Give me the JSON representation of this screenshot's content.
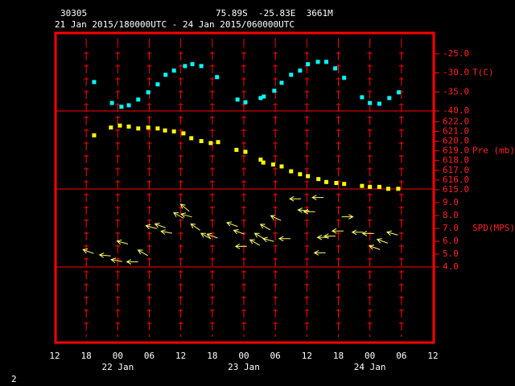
{
  "chart_data": {
    "type": "meteogram",
    "station": "30305",
    "location": "75.89S  -25.83E  3661M",
    "subtitle": "21 Jan 2015/180000UTC - 24 Jan 2015/060000UTC",
    "corner_label": "2",
    "frame_color": "#ff0000",
    "xlim": [
      0,
      72
    ],
    "xticks": [
      {
        "value": 0,
        "label": "12"
      },
      {
        "value": 6,
        "label": "18"
      },
      {
        "value": 12,
        "label": "00"
      },
      {
        "value": 18,
        "label": "06"
      },
      {
        "value": 24,
        "label": "12"
      },
      {
        "value": 30,
        "label": "18"
      },
      {
        "value": 36,
        "label": "00"
      },
      {
        "value": 42,
        "label": "06"
      },
      {
        "value": 48,
        "label": "12"
      },
      {
        "value": 54,
        "label": "18"
      },
      {
        "value": 60,
        "label": "00"
      },
      {
        "value": 66,
        "label": "06"
      },
      {
        "value": 72,
        "label": "12"
      }
    ],
    "day_labels": [
      {
        "value": 12,
        "label": "22 Jan"
      },
      {
        "value": 36,
        "label": "23 Jan"
      },
      {
        "value": 60,
        "label": "24 Jan"
      }
    ],
    "panels": [
      {
        "type": "scatter",
        "axis_label": "T(C)",
        "color": "#00ffff",
        "ylim": [
          -40,
          -19.3
        ],
        "yticks": [
          {
            "value": -25,
            "label": "-25.0"
          },
          {
            "value": -30,
            "label": "-30.0"
          },
          {
            "value": -35,
            "label": "-35.0"
          },
          {
            "value": -40,
            "label": "-40.0"
          }
        ],
        "x": [
          7.5,
          10.9,
          12.7,
          14.1,
          15.9,
          17.8,
          19.6,
          21.1,
          22.7,
          24.8,
          26.2,
          27.9,
          30.9,
          34.8,
          36.3,
          39.2,
          39.8,
          41.8,
          43.2,
          45.0,
          46.7,
          48.2,
          50.1,
          51.7,
          53.4,
          55.1,
          58.5,
          60.0,
          61.8,
          63.7,
          65.5
        ],
        "values": [
          -32.4,
          -37.9,
          -38.9,
          -38.5,
          -37.0,
          -35.1,
          -33.0,
          -30.5,
          -29.4,
          -28.2,
          -27.7,
          -28.2,
          -31.1,
          -37.0,
          -37.7,
          -36.6,
          -36.2,
          -34.7,
          -32.6,
          -30.5,
          -29.4,
          -27.7,
          -27.1,
          -27.1,
          -28.8,
          -31.3,
          -36.4,
          -37.9,
          -38.1,
          -36.6,
          -35.1
        ]
      },
      {
        "type": "scatter",
        "axis_label": "Pre (mb)",
        "color": "#ffff00",
        "ylim": [
          615,
          623.1
        ],
        "yticks": [
          {
            "value": 622,
            "label": "622.0"
          },
          {
            "value": 621,
            "label": "621.0"
          },
          {
            "value": 620,
            "label": "620.0"
          },
          {
            "value": 619,
            "label": "619.0"
          },
          {
            "value": 618,
            "label": "618.0"
          },
          {
            "value": 617,
            "label": "617.0"
          },
          {
            "value": 616,
            "label": "616.0"
          },
          {
            "value": 615,
            "label": "615.0"
          }
        ],
        "x": [
          7.5,
          10.7,
          12.4,
          14.1,
          15.9,
          17.8,
          19.6,
          21.0,
          22.7,
          24.5,
          26.0,
          27.9,
          29.7,
          31.1,
          34.6,
          36.3,
          39.2,
          39.7,
          41.6,
          43.2,
          45.0,
          46.7,
          48.2,
          50.2,
          51.7,
          53.6,
          55.1,
          58.5,
          60.0,
          61.8,
          63.5,
          65.4
        ],
        "values": [
          620.6,
          621.4,
          621.6,
          621.5,
          621.3,
          621.4,
          621.3,
          621.1,
          621.0,
          620.8,
          620.3,
          620.0,
          619.8,
          619.9,
          619.1,
          618.9,
          618.1,
          617.8,
          617.6,
          617.4,
          616.9,
          616.6,
          616.4,
          616.1,
          615.8,
          615.7,
          615.6,
          615.4,
          615.3,
          615.3,
          615.1,
          615.1
        ]
      },
      {
        "type": "vector",
        "axis_label": "SPD(MPS)",
        "color": "#ffff66",
        "ylim": [
          4,
          10
        ],
        "yticks": [
          {
            "value": 9,
            "label": "9.0"
          },
          {
            "value": 8,
            "label": "8.0"
          },
          {
            "value": 7,
            "label": "7.0"
          },
          {
            "value": 6,
            "label": "6.0"
          },
          {
            "value": 5,
            "label": "5.0"
          },
          {
            "value": 4,
            "label": "4.0"
          }
        ],
        "x": [
          6.4,
          9.6,
          11.8,
          12.9,
          14.8,
          16.8,
          18.4,
          20.1,
          21.3,
          23.6,
          24.8,
          25.1,
          26.8,
          28.8,
          30.0,
          33.8,
          35.1,
          35.5,
          38.1,
          39.0,
          40.1,
          40.7,
          42.1,
          43.8,
          45.8,
          47.4,
          48.5,
          50.1,
          50.5,
          51.1,
          52.4,
          53.9,
          55.7,
          57.7,
          59.7,
          60.9,
          62.4,
          64.3
        ],
        "values": [
          5.2,
          4.9,
          4.5,
          5.9,
          4.4,
          5.1,
          7.1,
          7.2,
          6.7,
          8.0,
          8.6,
          8.0,
          7.1,
          6.4,
          6.4,
          7.3,
          6.7,
          5.6,
          5.9,
          6.4,
          7.1,
          6.1,
          7.8,
          6.2,
          9.3,
          8.4,
          8.3,
          9.4,
          5.1,
          6.3,
          6.4,
          6.8,
          7.9,
          6.7,
          6.6,
          5.5,
          6.0,
          6.6
        ],
        "direction": [
          160,
          175,
          170,
          165,
          180,
          150,
          165,
          160,
          170,
          150,
          140,
          165,
          145,
          150,
          160,
          160,
          160,
          180,
          150,
          150,
          150,
          165,
          155,
          180,
          180,
          175,
          180,
          180,
          180,
          180,
          180,
          180,
          0,
          180,
          180,
          160,
          160,
          165
        ]
      }
    ]
  }
}
